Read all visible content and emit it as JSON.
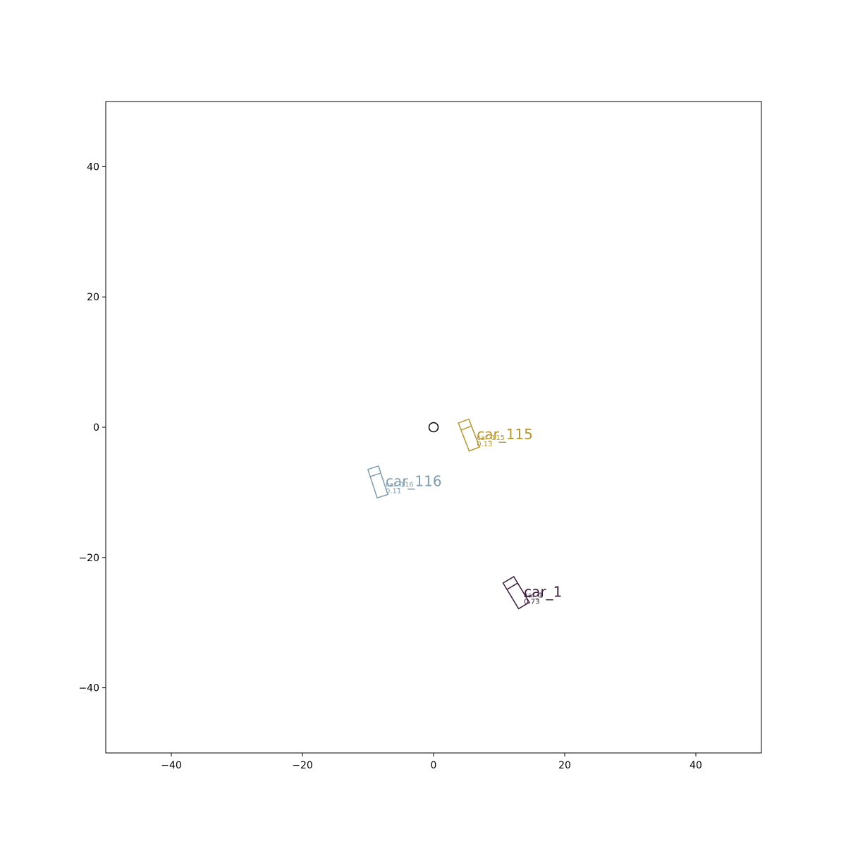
{
  "chart_data": {
    "type": "scatter",
    "title": "",
    "xlabel": "",
    "ylabel": "",
    "xlim": [
      -50,
      50
    ],
    "ylim": [
      -50,
      50
    ],
    "grid": false,
    "xticks": [
      -40,
      -20,
      0,
      20,
      40
    ],
    "yticks": [
      -40,
      -20,
      0,
      20,
      40
    ],
    "xtick_labels": [
      "−40",
      "−20",
      "0",
      "20",
      "40"
    ],
    "ytick_labels": [
      "−40",
      "−20",
      "0",
      "20",
      "40"
    ],
    "ego": {
      "x": 0,
      "y": 0,
      "marker": "circle"
    },
    "objects": [
      {
        "name": "car_115",
        "subtitle": "car_115",
        "score": "0.13",
        "color": "#b8962c",
        "center": [
          5.4,
          -1.2
        ],
        "length": 4.6,
        "width": 1.7,
        "heading_deg": 111
      },
      {
        "name": "car_116",
        "subtitle": "car_116",
        "score": "0.11",
        "color": "#7f9db3",
        "center": [
          -8.5,
          -8.4
        ],
        "length": 4.6,
        "width": 1.7,
        "heading_deg": 108
      },
      {
        "name": "car_1",
        "subtitle": "car_1",
        "score": "0.73",
        "color": "#3d1f3d",
        "center": [
          12.6,
          -25.4
        ],
        "length": 4.6,
        "width": 1.9,
        "heading_deg": 121
      }
    ]
  }
}
